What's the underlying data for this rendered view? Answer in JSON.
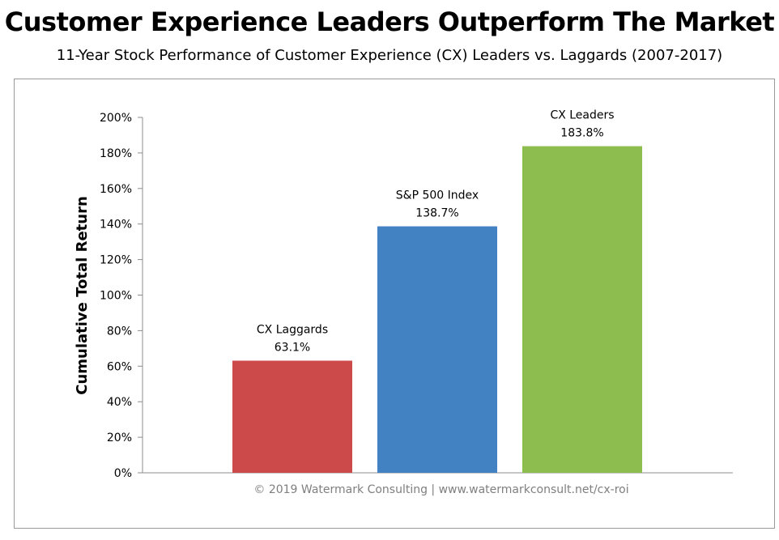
{
  "title": "Customer Experience Leaders Outperform The Market",
  "subtitle": "11-Year Stock Performance of Customer Experience (CX) Leaders vs. Laggards (2007-2017)",
  "footer": "© 2019 Watermark Consulting | www.watermarkconsult.net/cx-roi",
  "chart_data": {
    "type": "bar",
    "title": "Customer Experience Leaders Outperform The Market",
    "subtitle": "11-Year Stock Performance of Customer Experience (CX) Leaders vs. Laggards (2007-2017)",
    "ylabel": "Cumulative Total Return",
    "xlabel": "",
    "ylim": [
      0,
      200
    ],
    "yticks": [
      0,
      20,
      40,
      60,
      80,
      100,
      120,
      140,
      160,
      180,
      200
    ],
    "ytick_labels": [
      "0%",
      "20%",
      "40%",
      "60%",
      "80%",
      "100%",
      "120%",
      "140%",
      "160%",
      "180%",
      "200%"
    ],
    "grid": false,
    "legend": "none",
    "categories": [
      "CX Laggards",
      "S&P 500 Index",
      "CX Leaders"
    ],
    "values": [
      63.1,
      138.7,
      183.8
    ],
    "value_labels": [
      "63.1%",
      "138.7%",
      "183.8%"
    ],
    "colors": [
      "#cd4a4b",
      "#4382c2",
      "#8dbd4f"
    ]
  }
}
